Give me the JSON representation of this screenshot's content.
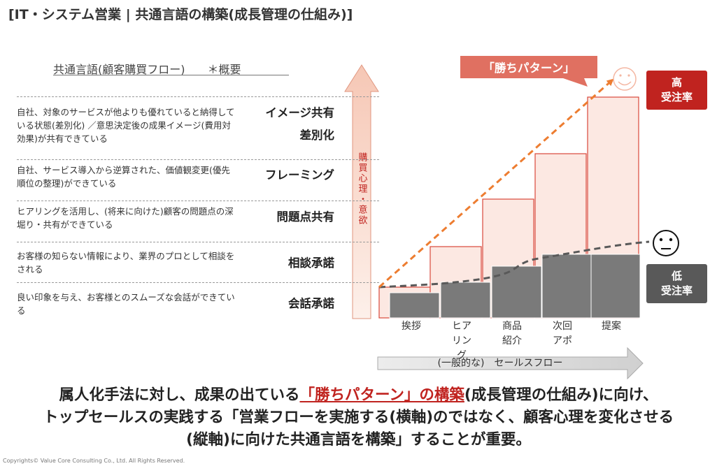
{
  "title": "[IT・システム営業 | 共通言語の構築(成長管理の仕組み)]",
  "flow_heading": "共通言語(顧客購買フロー)　　＊概要",
  "stages": [
    {
      "name": [
        "イメージ共有",
        "差別化"
      ],
      "description": "自社、対象のサービスが他よりも優れていると納得している状態(差別化) ／意思決定後の成果イメージ(費用対効果)が共有できている"
    },
    {
      "name": [
        "フレーミング"
      ],
      "description": "自社、サービス導入から逆算された、価値観変更(優先順位の整理)ができている"
    },
    {
      "name": [
        "問題点共有"
      ],
      "description": "ヒアリングを活用し、(将来に向けた)顧客の問題点の深堀り・共有ができている"
    },
    {
      "name": [
        "相談承諾"
      ],
      "description": "お客様の知らない情報により、業界のプロとして相談をされる"
    },
    {
      "name": [
        "会話承諾"
      ],
      "description": "良い印象を与え、お客様とのスムーズな会話ができている"
    }
  ],
  "vertical_axis_label": "購買心理・意欲",
  "sales_steps": [
    {
      "label": [
        "挨拶"
      ]
    },
    {
      "label": [
        "ヒア",
        "リン",
        "グ"
      ]
    },
    {
      "label": [
        "商品",
        "紹介"
      ]
    },
    {
      "label": [
        "次回",
        "アポ"
      ]
    },
    {
      "label": [
        "提案"
      ]
    }
  ],
  "flow_caption": "(一般的な)　セールスフロー",
  "win_pattern_label": "「勝ちパターン」",
  "high_rate": {
    "line1": "高",
    "line2": "受注率"
  },
  "low_rate": {
    "line1": "低",
    "line2": "受注率"
  },
  "summary": {
    "line1_pre": "属人化手法に対し、成果の出ている",
    "line1_highlight": "「勝ちパターン」の構築",
    "line1_post": "(成長管理の仕組み)に向け、",
    "line2": "トップセールスの実践する「営業フローを実施する(横軸)のではなく、顧客心理を変化させる",
    "line3": "(縦軸)に向けた共通言語を構築」することが重要。"
  },
  "copyright": "Copyrights© Value Core Consulting Co., Ltd.  All Rights Reserved.",
  "colors": {
    "accent_red": "#c0231f",
    "win_box": "#e07061",
    "pink_bar_fill": "#fce8e2",
    "pink_bar_stroke": "#d9483b",
    "gray_bar": "#7a7a7a",
    "arrow_orange": "#ed7d31",
    "low_box": "#595959"
  },
  "icons": {
    "happy": "smiling-face-icon",
    "neutral": "neutral-face-icon"
  }
}
